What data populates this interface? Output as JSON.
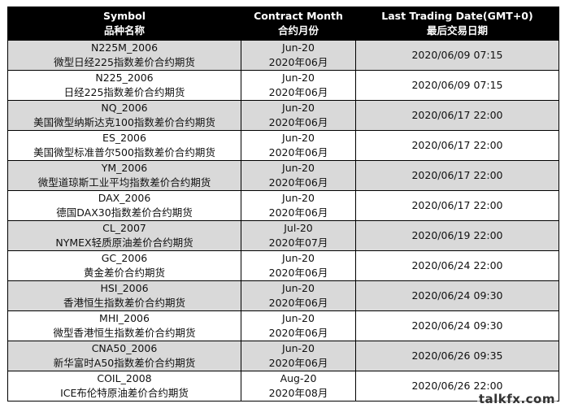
{
  "headers": {
    "symbol_en": "Symbol",
    "symbol_cn": "品种名称",
    "month_en": "Contract Month",
    "month_cn": "合约月份",
    "date_en": "Last Trading Date(GMT+0)",
    "date_cn": "最后交易日期"
  },
  "rows": [
    {
      "code": "N225M_2006",
      "name": "微型日经225指数差价合约期货",
      "month_en": "Jun-20",
      "month_cn": "2020年06月",
      "last_date": "2020/06/09 07:15"
    },
    {
      "code": "N225_2006",
      "name": "日经225指数差价合约期货",
      "month_en": "Jun-20",
      "month_cn": "2020年06月",
      "last_date": "2020/06/09 07:15"
    },
    {
      "code": "NQ_2006",
      "name": "美国微型纳斯达克100指数差价合约期货",
      "month_en": "Jun-20",
      "month_cn": "2020年06月",
      "last_date": "2020/06/17 22:00"
    },
    {
      "code": "ES_2006",
      "name": "美国微型标准普尔500指数差价合约期货",
      "month_en": "Jun-20",
      "month_cn": "2020年06月",
      "last_date": "2020/06/17 22:00"
    },
    {
      "code": "YM_2006",
      "name": "微型道琼斯工业平均指数差价合约期货",
      "month_en": "Jun-20",
      "month_cn": "2020年06月",
      "last_date": "2020/06/17 22:00"
    },
    {
      "code": "DAX_2006",
      "name": "德国DAX30指数差价合约期货",
      "month_en": "Jun-20",
      "month_cn": "2020年06月",
      "last_date": "2020/06/17 22:00"
    },
    {
      "code": "CL_2007",
      "name": "NYMEX轻质原油差价合约期货",
      "month_en": "Jul-20",
      "month_cn": "2020年07月",
      "last_date": "2020/06/19 22:00"
    },
    {
      "code": "GC_2006",
      "name": "黄金差价合约期货",
      "month_en": "Jun-20",
      "month_cn": "2020年06月",
      "last_date": "2020/06/24 22:00"
    },
    {
      "code": "HSI_2006",
      "name": "香港恒生指数差价合约期货",
      "month_en": "Jun-20",
      "month_cn": "2020年06月",
      "last_date": "2020/06/24 09:30"
    },
    {
      "code": "MHI_2006",
      "name": "微型香港恒生指数差价合约期货",
      "month_en": "Jun-20",
      "month_cn": "2020年06月",
      "last_date": "2020/06/24 09:30"
    },
    {
      "code": "CNA50_2006",
      "name": "新华富时A50指数差价合约期货",
      "month_en": "Jun-20",
      "month_cn": "2020年06月",
      "last_date": "2020/06/26 09:35"
    },
    {
      "code": "COIL_2008",
      "name": "ICE布伦特原油差价合约期货",
      "month_en": "Aug-20",
      "month_cn": "2020年08月",
      "last_date": "2020/06/26 22:00"
    }
  ],
  "watermark": "talkfx.com"
}
